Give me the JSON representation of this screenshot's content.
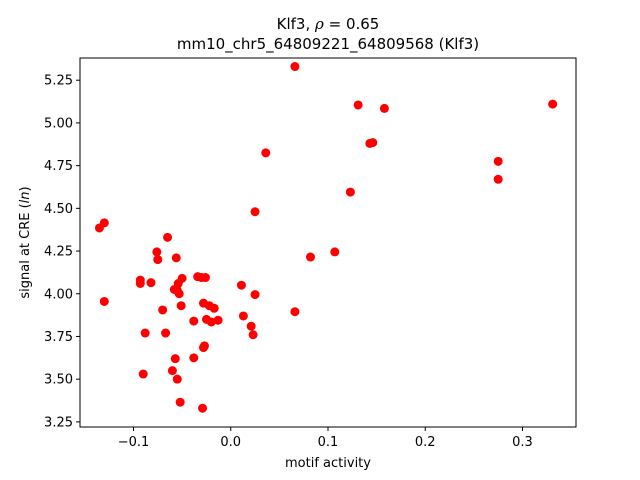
{
  "chart_data": {
    "type": "scatter",
    "title_line1_prefix": "Klf3, ",
    "title_line1_rho": "ρ",
    "title_line1_suffix": " = 0.65",
    "title_line2": "mm10_chr5_64809221_64809568 (Klf3)",
    "xlabel": "motif activity",
    "ylabel_prefix": "signal at CRE (",
    "ylabel_italic": "ln",
    "ylabel_suffix": ")",
    "xlim": [
      -0.155,
      0.355
    ],
    "ylim": [
      3.22,
      5.38
    ],
    "x_ticks": [
      -0.1,
      0.0,
      0.1,
      0.2,
      0.3
    ],
    "x_tick_labels": [
      "−0.1",
      "0.0",
      "0.1",
      "0.2",
      "0.3"
    ],
    "y_ticks": [
      3.25,
      3.5,
      3.75,
      4.0,
      4.25,
      4.5,
      4.75,
      5.0,
      5.25
    ],
    "y_tick_labels": [
      "3.25",
      "3.50",
      "3.75",
      "4.00",
      "4.25",
      "4.50",
      "4.75",
      "5.00",
      "5.25"
    ],
    "marker_color": "#ff0000",
    "grid": false,
    "points": [
      {
        "x": -0.135,
        "y": 4.385
      },
      {
        "x": -0.13,
        "y": 4.415
      },
      {
        "x": -0.13,
        "y": 3.955
      },
      {
        "x": -0.093,
        "y": 4.08
      },
      {
        "x": -0.093,
        "y": 4.06
      },
      {
        "x": -0.09,
        "y": 3.53
      },
      {
        "x": -0.088,
        "y": 3.77
      },
      {
        "x": -0.082,
        "y": 4.065
      },
      {
        "x": -0.076,
        "y": 4.245
      },
      {
        "x": -0.075,
        "y": 4.2
      },
      {
        "x": -0.07,
        "y": 3.905
      },
      {
        "x": -0.067,
        "y": 3.77
      },
      {
        "x": -0.065,
        "y": 4.33
      },
      {
        "x": -0.06,
        "y": 3.55
      },
      {
        "x": -0.058,
        "y": 4.025
      },
      {
        "x": -0.057,
        "y": 3.62
      },
      {
        "x": -0.056,
        "y": 4.21
      },
      {
        "x": -0.055,
        "y": 4.02
      },
      {
        "x": -0.055,
        "y": 3.5
      },
      {
        "x": -0.054,
        "y": 4.06
      },
      {
        "x": -0.053,
        "y": 4.0
      },
      {
        "x": -0.052,
        "y": 3.365
      },
      {
        "x": -0.051,
        "y": 3.93
      },
      {
        "x": -0.05,
        "y": 4.09
      },
      {
        "x": -0.038,
        "y": 3.84
      },
      {
        "x": -0.038,
        "y": 3.625
      },
      {
        "x": -0.034,
        "y": 4.1
      },
      {
        "x": -0.03,
        "y": 4.095
      },
      {
        "x": -0.029,
        "y": 3.33
      },
      {
        "x": -0.028,
        "y": 3.945
      },
      {
        "x": -0.028,
        "y": 3.685
      },
      {
        "x": -0.027,
        "y": 3.695
      },
      {
        "x": -0.026,
        "y": 4.095
      },
      {
        "x": -0.025,
        "y": 3.85
      },
      {
        "x": -0.022,
        "y": 3.93
      },
      {
        "x": -0.02,
        "y": 3.835
      },
      {
        "x": -0.017,
        "y": 3.915
      },
      {
        "x": -0.013,
        "y": 3.845
      },
      {
        "x": 0.011,
        "y": 4.05
      },
      {
        "x": 0.013,
        "y": 3.87
      },
      {
        "x": 0.021,
        "y": 3.81
      },
      {
        "x": 0.023,
        "y": 3.76
      },
      {
        "x": 0.025,
        "y": 3.995
      },
      {
        "x": 0.025,
        "y": 4.48
      },
      {
        "x": 0.036,
        "y": 4.825
      },
      {
        "x": 0.066,
        "y": 5.33
      },
      {
        "x": 0.066,
        "y": 3.895
      },
      {
        "x": 0.082,
        "y": 4.215
      },
      {
        "x": 0.107,
        "y": 4.245
      },
      {
        "x": 0.123,
        "y": 4.595
      },
      {
        "x": 0.131,
        "y": 5.105
      },
      {
        "x": 0.143,
        "y": 4.88
      },
      {
        "x": 0.146,
        "y": 4.885
      },
      {
        "x": 0.158,
        "y": 5.085
      },
      {
        "x": 0.275,
        "y": 4.775
      },
      {
        "x": 0.275,
        "y": 4.67
      },
      {
        "x": 0.331,
        "y": 5.11
      }
    ]
  }
}
